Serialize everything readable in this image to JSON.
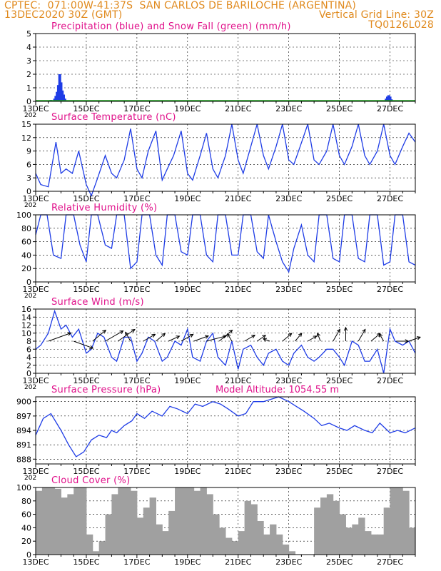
{
  "header": {
    "line1_left": "CPTEC:  071:00W-41:37S  SAN CARLOS DE BARILOCHE (ARGENTINA)",
    "line2_left": "13DEC2020 30Z (GMT)",
    "line2_right": "Vertical Grid Line: 30Z",
    "line3_right": "TQ0126L028"
  },
  "colors": {
    "title": "#e0108a",
    "header": "#e08a1e",
    "line": "#1e3ce6",
    "snow": "#1a9e1a",
    "cloud": "#a0a0a0"
  },
  "x_axis": {
    "labels": [
      "13DEC",
      "15DEC",
      "17DEC",
      "19DEC",
      "21DEC",
      "23DEC",
      "25DEC",
      "27DEC"
    ],
    "cropped_year": "202"
  },
  "chart_data": [
    {
      "type": "bar",
      "title": "Precipitation (blue) and Snow Fall (green) (mm/h)",
      "ylim": [
        0,
        5
      ],
      "yticks": [
        "0",
        "1",
        "2",
        "3",
        "4",
        "5"
      ],
      "x_days": [
        13.5,
        13.6,
        13.75,
        13.8,
        13.85,
        13.9,
        13.95,
        14.0,
        14.05,
        14.1,
        14.15,
        14.2,
        26.85,
        26.9,
        26.95,
        27.0,
        27.05
      ],
      "series": [
        {
          "name": "Precipitation",
          "values": [
            0.05,
            0.1,
            0.2,
            0.4,
            0.7,
            1.2,
            2.0,
            1.4,
            0.8,
            0.5,
            0.2,
            0.05,
            0.2,
            0.35,
            0.45,
            0.35,
            0.15
          ]
        },
        {
          "name": "Snow Fall",
          "values": [
            0.05,
            0,
            0,
            0,
            0,
            0,
            0,
            0,
            0,
            0,
            0,
            0,
            0,
            0,
            0,
            0,
            0
          ]
        }
      ]
    },
    {
      "type": "line",
      "title": "Surface Temperature (nC)",
      "ylim": [
        0,
        15
      ],
      "yticks": [
        "0",
        "3",
        "6",
        "9",
        "12",
        "15"
      ],
      "x_days": [
        13.0,
        13.2,
        13.5,
        13.65,
        13.8,
        14.0,
        14.2,
        14.45,
        14.7,
        15.0,
        15.2,
        15.45,
        15.75,
        16.0,
        16.2,
        16.5,
        16.75,
        17.0,
        17.2,
        17.45,
        17.75,
        18.0,
        18.2,
        18.45,
        18.75,
        19.0,
        19.2,
        19.5,
        19.75,
        20.0,
        20.2,
        20.5,
        20.75,
        21.0,
        21.2,
        21.45,
        21.75,
        22.0,
        22.2,
        22.5,
        22.75,
        23.0,
        23.2,
        23.45,
        23.75,
        24.0,
        24.2,
        24.5,
        24.75,
        25.0,
        25.2,
        25.5,
        25.75,
        26.0,
        26.2,
        26.5,
        26.75,
        27.0,
        27.2,
        27.5,
        27.75,
        28.0
      ],
      "values": [
        4,
        1.5,
        1.0,
        6,
        11,
        4,
        5,
        4,
        9,
        1.5,
        -1,
        3,
        8,
        4,
        3,
        7,
        14,
        5,
        3,
        9,
        13.5,
        2.5,
        5,
        8,
        13.5,
        4,
        2.5,
        8,
        13,
        5,
        3,
        8,
        15,
        7,
        4,
        9,
        15,
        8,
        5,
        10,
        15,
        7,
        6,
        10,
        15,
        7,
        6,
        9,
        15,
        8,
        6,
        10,
        15,
        8,
        6,
        9,
        15,
        8,
        6,
        10,
        13,
        11
      ]
    },
    {
      "type": "line",
      "title": "Relative Humidity (%)",
      "ylim": [
        0,
        100
      ],
      "yticks": [
        "0",
        "20",
        "40",
        "60",
        "80",
        "100"
      ],
      "x_days": [
        13.0,
        13.2,
        13.45,
        13.7,
        14.0,
        14.2,
        14.5,
        14.75,
        15.0,
        15.2,
        15.45,
        15.75,
        16.0,
        16.2,
        16.5,
        16.75,
        17.0,
        17.2,
        17.5,
        17.75,
        18.0,
        18.2,
        18.5,
        18.75,
        19.0,
        19.2,
        19.5,
        19.75,
        20.0,
        20.2,
        20.5,
        20.75,
        21.0,
        21.2,
        21.5,
        21.75,
        22.0,
        22.2,
        22.5,
        22.75,
        23.0,
        23.2,
        23.5,
        23.75,
        24.0,
        24.2,
        24.5,
        24.75,
        25.0,
        25.2,
        25.5,
        25.75,
        26.0,
        26.2,
        26.5,
        26.75,
        27.0,
        27.2,
        27.5,
        27.75,
        28.0
      ],
      "values": [
        70,
        100,
        100,
        40,
        35,
        100,
        100,
        55,
        30,
        100,
        100,
        55,
        50,
        100,
        100,
        20,
        30,
        100,
        100,
        40,
        25,
        100,
        100,
        45,
        40,
        100,
        100,
        40,
        30,
        100,
        100,
        40,
        40,
        100,
        100,
        45,
        35,
        100,
        60,
        30,
        15,
        50,
        85,
        40,
        30,
        100,
        100,
        35,
        30,
        100,
        100,
        35,
        30,
        100,
        100,
        25,
        30,
        100,
        100,
        30,
        25
      ]
    },
    {
      "type": "line",
      "title": "Surface Wind (m/s)",
      "ylim": [
        0,
        16
      ],
      "yticks": [
        "0",
        "2",
        "4",
        "6",
        "8",
        "10",
        "12",
        "14",
        "16"
      ],
      "x_days": [
        13.0,
        13.2,
        13.5,
        13.75,
        14.0,
        14.2,
        14.45,
        14.7,
        15.0,
        15.2,
        15.45,
        15.7,
        16.0,
        16.2,
        16.5,
        16.75,
        17.0,
        17.2,
        17.45,
        17.7,
        18.0,
        18.2,
        18.5,
        18.75,
        19.0,
        19.2,
        19.5,
        19.75,
        20.0,
        20.2,
        20.5,
        20.75,
        21.0,
        21.2,
        21.5,
        21.75,
        22.0,
        22.2,
        22.5,
        22.75,
        23.0,
        23.2,
        23.5,
        23.75,
        24.0,
        24.2,
        24.5,
        24.75,
        25.0,
        25.2,
        25.5,
        25.75,
        26.0,
        26.2,
        26.5,
        26.75,
        27.0,
        27.2,
        27.5,
        27.75,
        28.0
      ],
      "values": [
        6,
        7,
        10,
        15.5,
        11,
        12,
        9,
        11,
        5,
        6,
        10,
        9,
        4,
        3,
        9,
        9,
        3,
        5,
        9,
        8,
        3,
        4,
        8,
        7,
        11,
        4,
        3,
        8,
        10,
        4,
        2,
        8,
        1,
        6,
        7,
        4,
        2,
        5,
        6,
        3,
        2,
        5,
        7,
        4,
        3,
        4,
        6,
        6,
        4,
        2,
        8,
        7,
        3,
        3,
        6,
        0,
        11,
        8,
        7,
        8,
        5
      ],
      "vectors_x_days": [
        13.5,
        14.5,
        15.25,
        15.75,
        16.25,
        16.75,
        17.25,
        17.75,
        18.25,
        18.75,
        19.25,
        19.75,
        20.25,
        20.75,
        21.25,
        21.75,
        22.25,
        22.75,
        23.25,
        23.75,
        24.25,
        24.75,
        25.25,
        25.75,
        26.25,
        26.75,
        27.25,
        27.75
      ],
      "vectors_dir_deg": [
        20,
        -20,
        40,
        30,
        35,
        120,
        30,
        40,
        25,
        30,
        20,
        15,
        40,
        120,
        30,
        35,
        160,
        40,
        50,
        30,
        110,
        60,
        90,
        60,
        40,
        120,
        0,
        20
      ],
      "vectors_len": [
        14,
        12,
        10,
        12,
        12,
        6,
        8,
        7,
        7,
        8,
        9,
        12,
        10,
        5,
        7,
        6,
        4,
        7,
        6,
        6,
        5,
        8,
        8,
        8,
        7,
        5,
        7,
        7
      ]
    },
    {
      "type": "line",
      "title": "Surface Pressure (hPa)",
      "annotation": "Model Altitude: 1054.55 m",
      "ylim": [
        887,
        901
      ],
      "yticks": [
        "888",
        "891",
        "894",
        "897",
        "900"
      ],
      "x_days": [
        13.0,
        13.3,
        13.6,
        14.0,
        14.3,
        14.6,
        14.9,
        15.2,
        15.5,
        15.8,
        16.0,
        16.2,
        16.5,
        16.8,
        17.0,
        17.3,
        17.6,
        18.0,
        18.3,
        18.6,
        19.0,
        19.3,
        19.6,
        20.0,
        20.3,
        20.6,
        21.0,
        21.3,
        21.6,
        22.0,
        22.3,
        22.6,
        23.0,
        23.3,
        23.6,
        24.0,
        24.3,
        24.6,
        25.0,
        25.3,
        25.6,
        26.0,
        26.3,
        26.6,
        27.0,
        27.3,
        27.6,
        28.0
      ],
      "values": [
        893,
        896.5,
        897.5,
        894,
        891,
        888.5,
        889.5,
        892,
        893,
        892.5,
        894,
        893.5,
        895,
        896,
        897.5,
        896.5,
        898,
        897,
        899,
        898.5,
        897.5,
        899.5,
        899,
        900,
        899.5,
        898.5,
        897,
        897.5,
        900,
        900,
        900.5,
        901,
        900,
        899,
        898,
        896.5,
        895,
        895.5,
        894.5,
        894,
        895,
        894,
        893.5,
        895.5,
        893.5,
        894,
        893.5,
        894.5
      ]
    },
    {
      "type": "bar",
      "title": "Cloud Cover (%)",
      "ylim": [
        0,
        100
      ],
      "yticks": [
        "0",
        "20",
        "40",
        "60",
        "80",
        "100"
      ],
      "x_days": [
        13.0,
        13.25,
        13.5,
        13.75,
        14.0,
        14.25,
        14.5,
        14.75,
        15.0,
        15.25,
        15.5,
        15.75,
        16.0,
        16.25,
        16.5,
        16.75,
        17.0,
        17.25,
        17.5,
        17.75,
        18.0,
        18.25,
        18.5,
        18.75,
        19.0,
        19.25,
        19.5,
        19.75,
        20.0,
        20.25,
        20.5,
        20.75,
        21.0,
        21.25,
        21.5,
        21.75,
        22.0,
        22.25,
        22.5,
        22.75,
        23.0,
        23.25,
        23.5,
        23.75,
        24.0,
        24.25,
        24.5,
        24.75,
        25.0,
        25.25,
        25.5,
        25.75,
        26.0,
        26.25,
        26.5,
        26.75,
        27.0,
        27.25,
        27.5,
        27.75
      ],
      "values": [
        95,
        100,
        100,
        98,
        85,
        90,
        100,
        100,
        30,
        5,
        20,
        60,
        90,
        100,
        100,
        95,
        55,
        70,
        85,
        45,
        35,
        65,
        100,
        100,
        100,
        95,
        100,
        90,
        60,
        40,
        25,
        20,
        35,
        80,
        75,
        50,
        30,
        45,
        30,
        15,
        5,
        0,
        0,
        0,
        70,
        85,
        90,
        80,
        60,
        40,
        45,
        55,
        35,
        30,
        30,
        70,
        100,
        100,
        95,
        40
      ]
    }
  ]
}
